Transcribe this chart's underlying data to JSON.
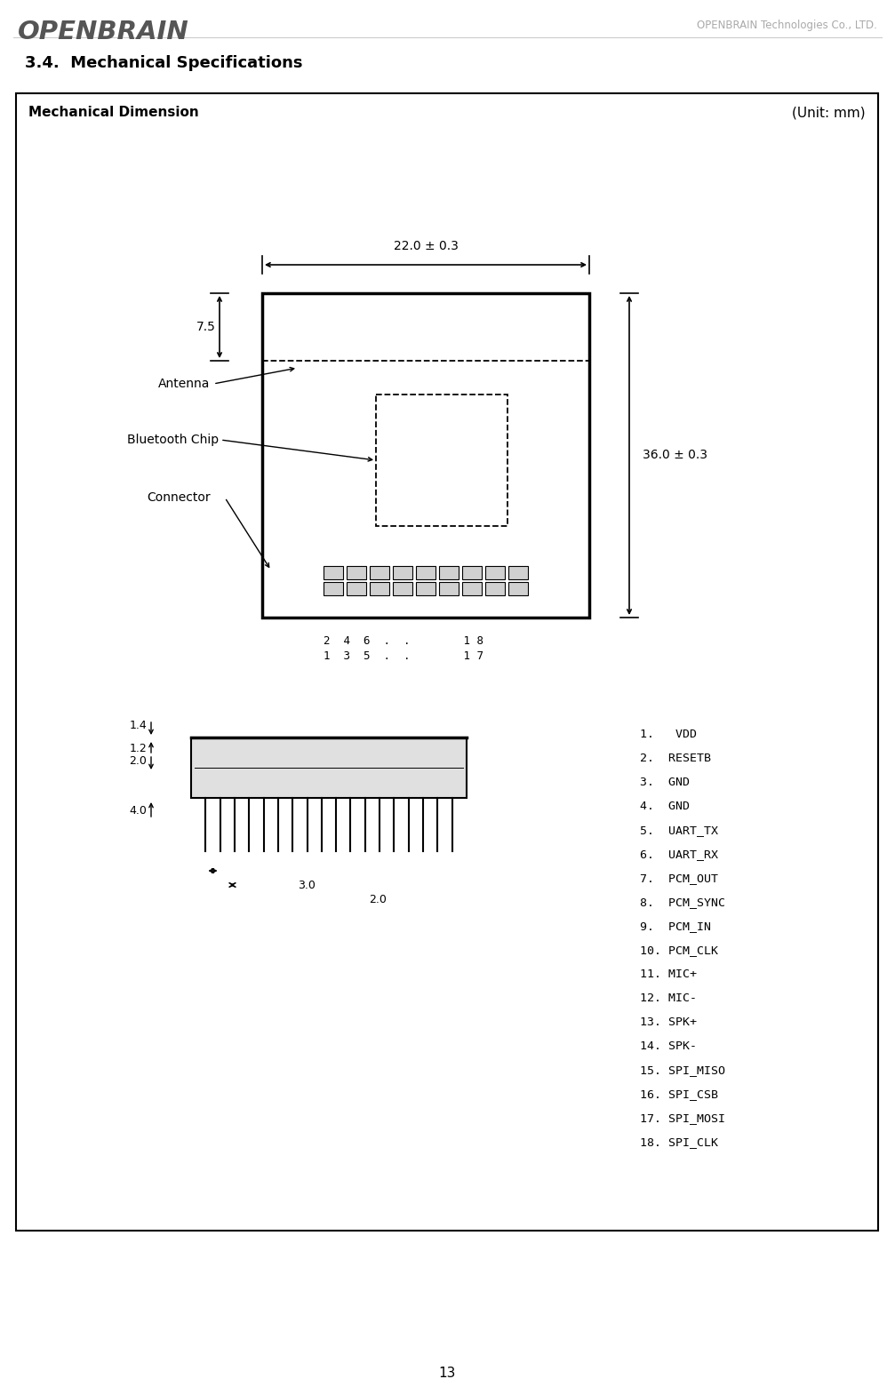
{
  "page_number": "13",
  "header_left": "OPENBRAIN",
  "header_right": "OPENBRAIN Technologies Co., LTD.",
  "section_title": "3.4.  Mechanical Specifications",
  "box_title_left": "Mechanical Dimension",
  "box_title_right": "(Unit: mm)",
  "dim_width_label": "22.0 ± 0.3",
  "dim_height_label": "36.0 ± 0.3",
  "dim_7_5": "7.5",
  "label_antenna": "Antenna",
  "label_bluetooth": "Bluetooth Chip",
  "label_connector": "Connector",
  "pin_labels_top": "2  4  6  .  .        1 8",
  "pin_labels_bottom": "1  3  5  .  .        1 7",
  "dim_1_4": "1.4",
  "dim_1_2": "1.2",
  "dim_2_0_left": "2.0",
  "dim_4_0": "4.0",
  "dim_3_0_bottom": "3.0",
  "dim_2_0_bottom": "2.0",
  "connector_pins": [
    "1.   VDD",
    "2.  RESETB",
    "3.  GND",
    "4.  GND",
    "5.  UART_TX",
    "6.  UART_RX",
    "7.  PCM_OUT",
    "8.  PCM_SYNC",
    "9.  PCM_IN",
    "10. PCM_CLK",
    "11. MIC+",
    "12. MIC-",
    "13. SPK+",
    "14. SPK-",
    "15. SPI_MISO",
    "16. SPI_CSB",
    "17. SPI_MOSI",
    "18. SPI_CLK"
  ],
  "bg_color": "#ffffff",
  "line_color": "#000000",
  "text_color": "#000000"
}
